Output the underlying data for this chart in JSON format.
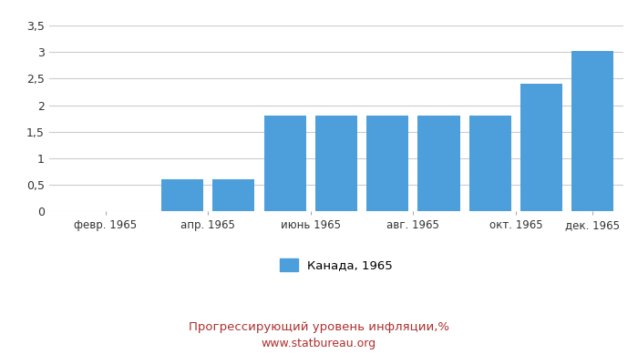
{
  "values": [
    0,
    0,
    0.61,
    0.61,
    1.8,
    1.8,
    1.81,
    1.81,
    1.8,
    2.41,
    3.02
  ],
  "bar_positions": [
    0,
    1,
    2,
    3,
    4,
    5,
    6,
    7,
    8,
    9,
    10
  ],
  "bar_color": "#4d9fdc",
  "legend_label": "Канада, 1965",
  "title": "Прогрессирующий уровень инфляции,%",
  "subtitle": "www.statbureau.org",
  "ylim": [
    0,
    3.5
  ],
  "yticks": [
    0,
    0.5,
    1.0,
    1.5,
    2.0,
    2.5,
    3.0,
    3.5
  ],
  "ytick_labels": [
    "0",
    "0,5",
    "1",
    "1,5",
    "2",
    "2,5",
    "3",
    "3,5"
  ],
  "xtick_positions": [
    0.5,
    2.5,
    4.5,
    6.5,
    8.5,
    10.0
  ],
  "xtick_labels": [
    "февр. 1965",
    "апр. 1965",
    "июнь 1965",
    "авг. 1965",
    "окт. 1965",
    "дек. 1965"
  ],
  "background_color": "#ffffff",
  "grid_color": "#cccccc",
  "title_color": "#b03030",
  "subtitle_color": "#b03030",
  "title_fontsize": 9.5,
  "subtitle_fontsize": 9,
  "bar_width": 0.82
}
